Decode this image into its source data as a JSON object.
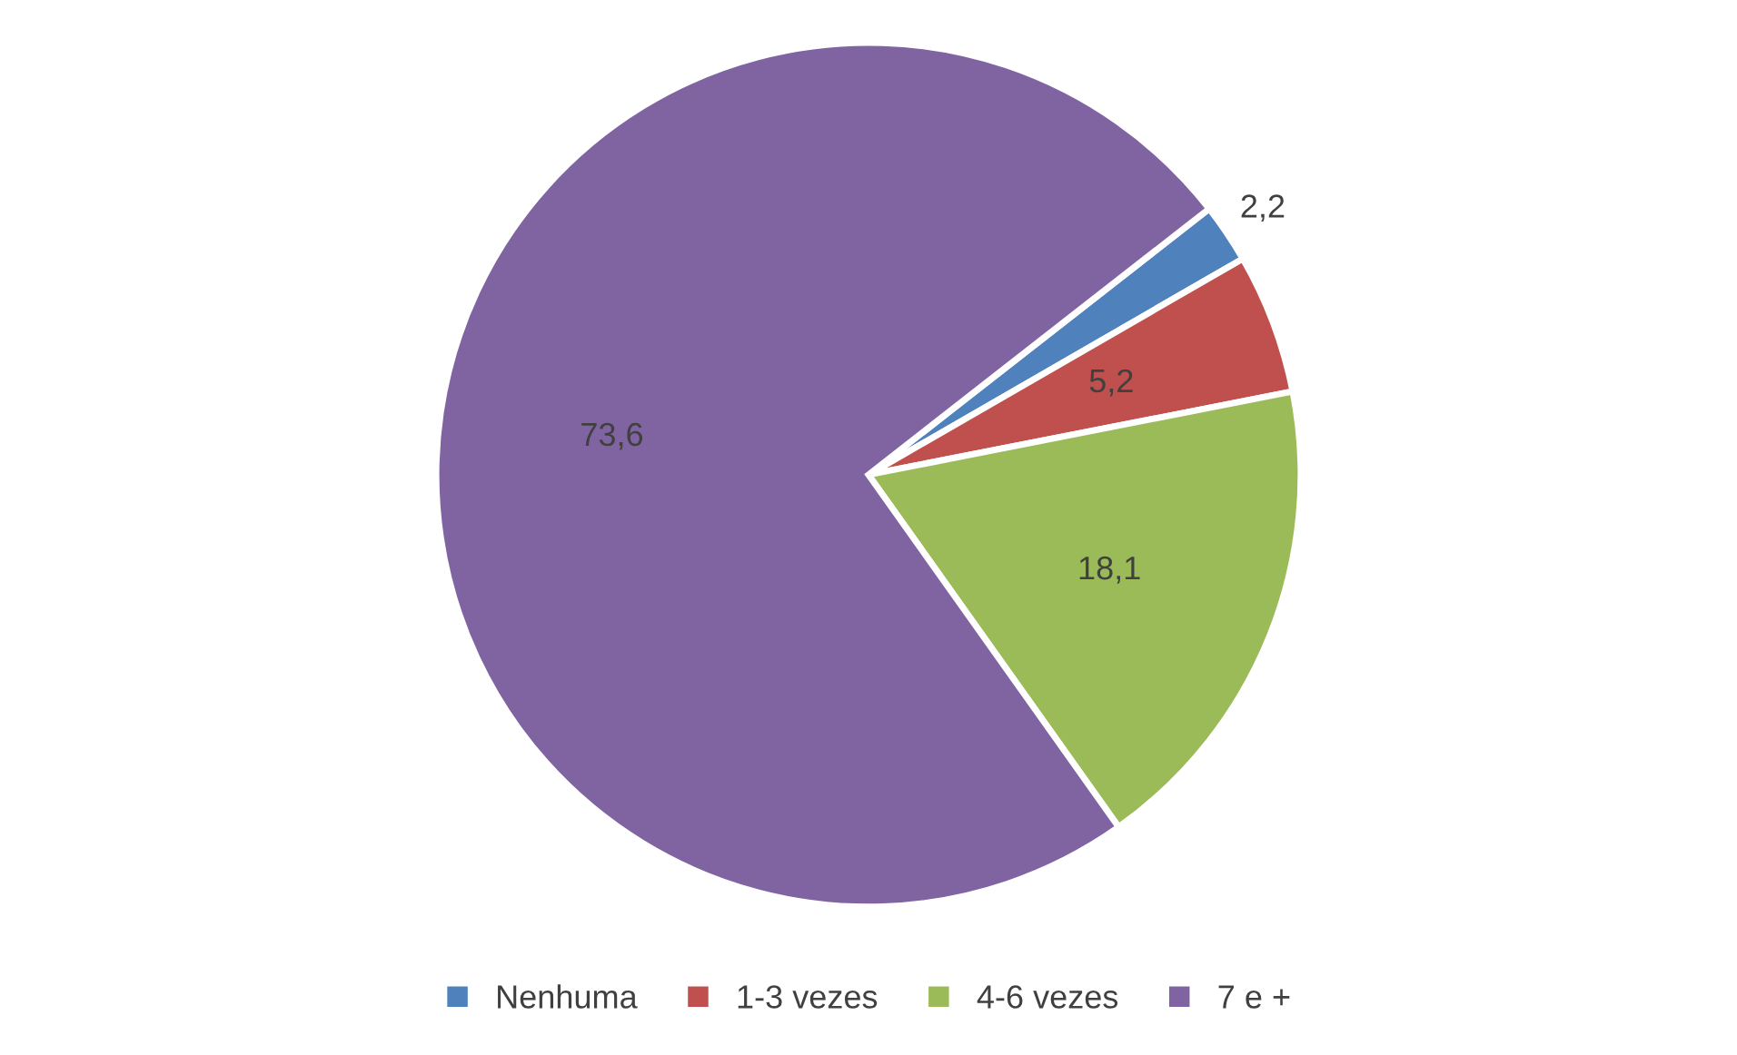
{
  "chart_data": {
    "type": "pie",
    "categories": [
      "Nenhuma",
      "1-3 vezes",
      "4-6 vezes",
      "7 e +"
    ],
    "values": [
      2.2,
      5.2,
      18.1,
      73.6
    ],
    "value_labels": [
      "2,2",
      "5,2",
      "18,1",
      "73,6"
    ],
    "colors": [
      "#4f81bd",
      "#c0504d",
      "#9bbb59",
      "#8064a2"
    ],
    "legend": "bottom"
  }
}
